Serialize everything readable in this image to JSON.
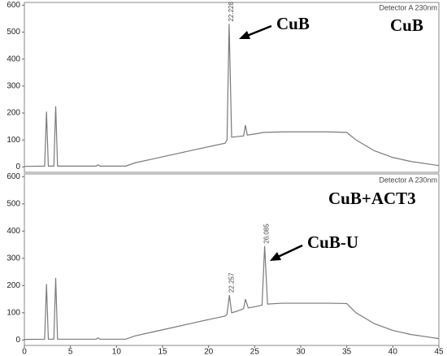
{
  "chart_data": [
    {
      "type": "line",
      "detector": "Detector A 230nm",
      "sample": "CuB",
      "annotation": "CuB",
      "color": "#7a7a7a",
      "xlim": [
        0,
        45
      ],
      "ylim": [
        -20,
        610
      ],
      "yticks": [
        0,
        100,
        200,
        300,
        400,
        500,
        600
      ],
      "peaks": [
        22.228
      ],
      "x": [
        0,
        2.2,
        2.4,
        2.6,
        3.2,
        3.4,
        3.6,
        7.8,
        8.0,
        8.2,
        11,
        12,
        14,
        16,
        18,
        20,
        21.8,
        22.0,
        22.228,
        22.5,
        23,
        23.8,
        24.0,
        24.2,
        25,
        26,
        28,
        30,
        33,
        35,
        36,
        38,
        40,
        42,
        44,
        45
      ],
      "values": [
        2,
        3,
        205,
        3,
        3,
        225,
        3,
        3,
        8,
        3,
        3,
        15,
        30,
        45,
        60,
        75,
        88,
        100,
        530,
        110,
        112,
        115,
        155,
        118,
        122,
        128,
        130,
        130,
        130,
        128,
        100,
        60,
        35,
        20,
        10,
        5
      ]
    },
    {
      "type": "line",
      "detector": "Detector A 230nm",
      "sample": "CuB+ACT3",
      "annotation": "CuB-U",
      "color": "#7a7a7a",
      "xlim": [
        0,
        45
      ],
      "ylim": [
        -20,
        610
      ],
      "yticks": [
        0,
        100,
        200,
        300,
        400,
        500,
        600
      ],
      "xticks": [
        0,
        5,
        10,
        15,
        20,
        25,
        30,
        35,
        40,
        45
      ],
      "peaks": [
        22.257,
        26.085
      ],
      "x": [
        0,
        2.2,
        2.4,
        2.6,
        3.2,
        3.4,
        3.6,
        7.8,
        8.0,
        8.2,
        11,
        12,
        14,
        16,
        18,
        20,
        21.8,
        22.0,
        22.257,
        22.5,
        23,
        23.8,
        24.0,
        24.3,
        25,
        25.8,
        26.085,
        26.4,
        28,
        30,
        33,
        35,
        36,
        38,
        40,
        42,
        44,
        45
      ],
      "values": [
        2,
        3,
        205,
        3,
        3,
        228,
        3,
        3,
        8,
        3,
        3,
        15,
        30,
        45,
        60,
        75,
        88,
        95,
        165,
        100,
        105,
        115,
        150,
        118,
        122,
        128,
        345,
        132,
        135,
        135,
        135,
        134,
        100,
        60,
        35,
        20,
        10,
        5
      ]
    }
  ]
}
